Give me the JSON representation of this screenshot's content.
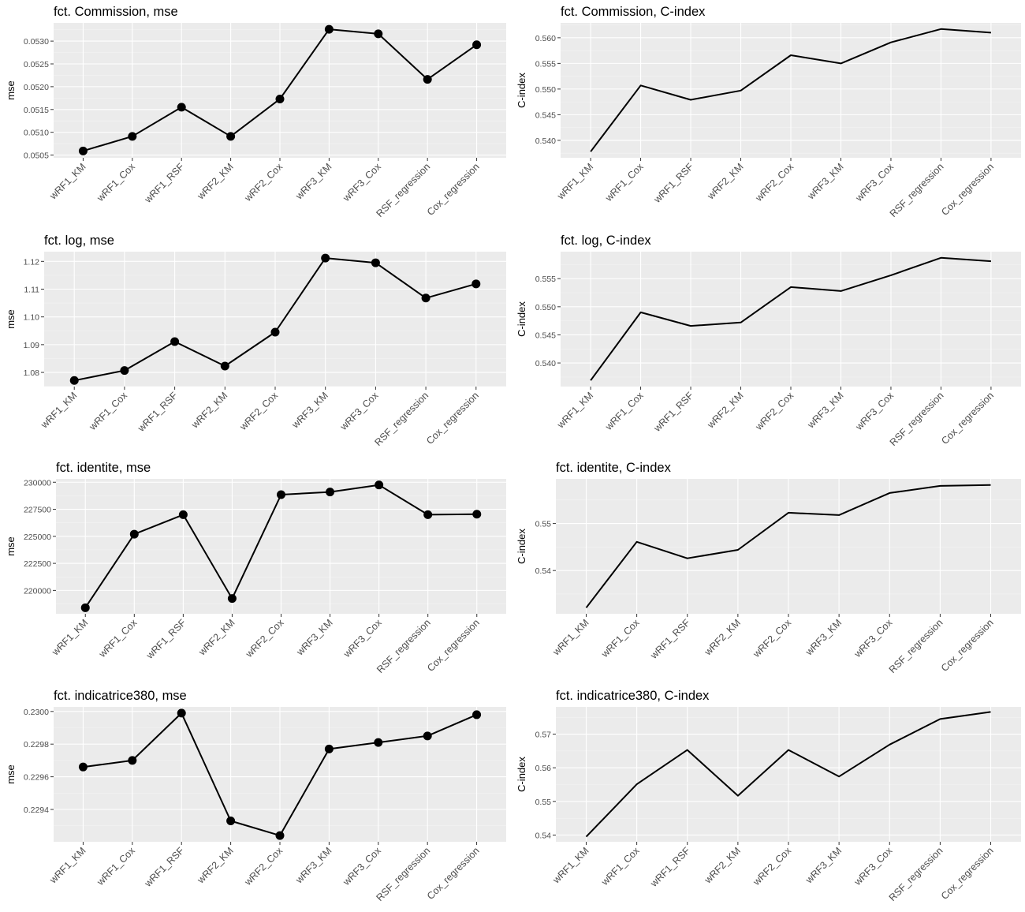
{
  "chart_data": [
    {
      "id": "commission-mse",
      "type": "line",
      "title": "fct. Commission, mse",
      "ylabel": "mse",
      "xlabel": "",
      "markers": true,
      "categories": [
        "wRF1_KM",
        "wRF1_Cox",
        "wRF1_RSF",
        "wRF2_KM",
        "wRF2_Cox",
        "wRF3_KM",
        "wRF3_Cox",
        "RSF_regression",
        "Cox_regression"
      ],
      "values": [
        0.05059,
        0.05091,
        0.05155,
        0.05091,
        0.05173,
        0.05326,
        0.05316,
        0.05216,
        0.05292
      ],
      "ylim": [
        0.05044,
        0.0534
      ],
      "yticks": [
        0.0505,
        0.051,
        0.0515,
        0.052,
        0.0525,
        0.053
      ],
      "ytick_labels": [
        "0.0505",
        "0.0510",
        "0.0515",
        "0.0520",
        "0.0525",
        "0.0530"
      ]
    },
    {
      "id": "commission-cindex",
      "type": "line",
      "title": "fct. Commission, C-index",
      "ylabel": "C-index",
      "xlabel": "",
      "markers": false,
      "categories": [
        "wRF1_KM",
        "wRF1_Cox",
        "wRF1_RSF",
        "wRF2_KM",
        "wRF2_Cox",
        "wRF3_KM",
        "wRF3_Cox",
        "RSF_regression",
        "Cox_regression"
      ],
      "values": [
        0.5378,
        0.5507,
        0.5479,
        0.5497,
        0.5566,
        0.555,
        0.5591,
        0.5617,
        0.561
      ],
      "ylim": [
        0.5366,
        0.5629
      ],
      "yticks": [
        0.54,
        0.545,
        0.55,
        0.555,
        0.56
      ],
      "ytick_labels": [
        "0.540",
        "0.545",
        "0.550",
        "0.555",
        "0.560"
      ]
    },
    {
      "id": "log-mse",
      "type": "line",
      "title": "fct. log, mse",
      "ylabel": "mse",
      "xlabel": "",
      "markers": true,
      "categories": [
        "wRF1_KM",
        "wRF1_Cox",
        "wRF1_RSF",
        "wRF2_KM",
        "wRF2_Cox",
        "wRF3_KM",
        "wRF3_Cox",
        "RSF_regression",
        "Cox_regression"
      ],
      "values": [
        1.0771,
        1.0807,
        1.0911,
        1.0823,
        1.0945,
        1.1212,
        1.1195,
        1.1068,
        1.1119
      ],
      "ylim": [
        1.0749,
        1.1235
      ],
      "yticks": [
        1.08,
        1.09,
        1.1,
        1.11,
        1.12
      ],
      "ytick_labels": [
        "1.08",
        "1.09",
        "1.10",
        "1.11",
        "1.12"
      ]
    },
    {
      "id": "log-cindex",
      "type": "line",
      "title": "fct. log, C-index",
      "ylabel": "C-index",
      "xlabel": "",
      "markers": false,
      "categories": [
        "wRF1_KM",
        "wRF1_Cox",
        "wRF1_RSF",
        "wRF2_KM",
        "wRF2_Cox",
        "wRF3_KM",
        "wRF3_Cox",
        "RSF_regression",
        "Cox_regression"
      ],
      "values": [
        0.5369,
        0.549,
        0.5466,
        0.5472,
        0.5535,
        0.5528,
        0.5556,
        0.5587,
        0.5581
      ],
      "ylim": [
        0.5358,
        0.5598
      ],
      "yticks": [
        0.54,
        0.545,
        0.55,
        0.555
      ],
      "ytick_labels": [
        "0.540",
        "0.545",
        "0.550",
        "0.555"
      ]
    },
    {
      "id": "identite-mse",
      "type": "line",
      "title": "fct. identite, mse",
      "ylabel": "mse",
      "xlabel": "",
      "markers": true,
      "categories": [
        "wRF1_KM",
        "wRF1_Cox",
        "wRF1_RSF",
        "wRF2_KM",
        "wRF2_Cox",
        "wRF3_KM",
        "wRF3_Cox",
        "RSF_regression",
        "Cox_regression"
      ],
      "values": [
        218400,
        225200,
        227000,
        219250,
        228850,
        229100,
        229750,
        227000,
        227050
      ],
      "ylim": [
        217840,
        230310
      ],
      "yticks": [
        220000,
        222500,
        225000,
        227500,
        230000
      ],
      "ytick_labels": [
        "220000",
        "222500",
        "225000",
        "227500",
        "230000"
      ]
    },
    {
      "id": "identite-cindex",
      "type": "line",
      "title": "fct. identite, C-index",
      "ylabel": "C-index",
      "xlabel": "",
      "markers": false,
      "categories": [
        "wRF1_KM",
        "wRF1_Cox",
        "wRF1_RSF",
        "wRF2_KM",
        "wRF2_Cox",
        "wRF3_KM",
        "wRF3_Cox",
        "RSF_regression",
        "Cox_regression"
      ],
      "values": [
        0.5321,
        0.5461,
        0.5426,
        0.5444,
        0.5523,
        0.5518,
        0.5565,
        0.558,
        0.5582
      ],
      "ylim": [
        0.5308,
        0.5595
      ],
      "yticks": [
        0.54,
        0.55
      ],
      "ytick_labels": [
        "0.54",
        "0.55"
      ]
    },
    {
      "id": "indicatrice380-mse",
      "type": "line",
      "title": "fct. indicatrice380, mse",
      "ylabel": "mse",
      "xlabel": "",
      "markers": true,
      "categories": [
        "wRF1_KM",
        "wRF1_Cox",
        "wRF1_RSF",
        "wRF2_KM",
        "wRF2_Cox",
        "wRF3_KM",
        "wRF3_Cox",
        "RSF_regression",
        "Cox_regression"
      ],
      "values": [
        0.22966,
        0.2297,
        0.22999,
        0.22933,
        0.22924,
        0.22977,
        0.22981,
        0.22985,
        0.22998
      ],
      "ylim": [
        0.229202,
        0.230028
      ],
      "yticks": [
        0.2294,
        0.2296,
        0.2298,
        0.23
      ],
      "ytick_labels": [
        "0.2294",
        "0.2296",
        "0.2298",
        "0.2300"
      ]
    },
    {
      "id": "indicatrice380-cindex",
      "type": "line",
      "title": "fct. indicatrice380, C-index",
      "ylabel": "C-index",
      "xlabel": "",
      "markers": false,
      "categories": [
        "wRF1_KM",
        "wRF1_Cox",
        "wRF1_RSF",
        "wRF2_KM",
        "wRF2_Cox",
        "wRF3_KM",
        "wRF3_Cox",
        "RSF_regression",
        "Cox_regression"
      ],
      "values": [
        0.5395,
        0.5551,
        0.5653,
        0.5517,
        0.5653,
        0.5574,
        0.5669,
        0.5745,
        0.5766
      ],
      "ylim": [
        0.538,
        0.5781
      ],
      "yticks": [
        0.54,
        0.55,
        0.56,
        0.57
      ],
      "ytick_labels": [
        "0.54",
        "0.55",
        "0.56",
        "0.57"
      ]
    }
  ]
}
